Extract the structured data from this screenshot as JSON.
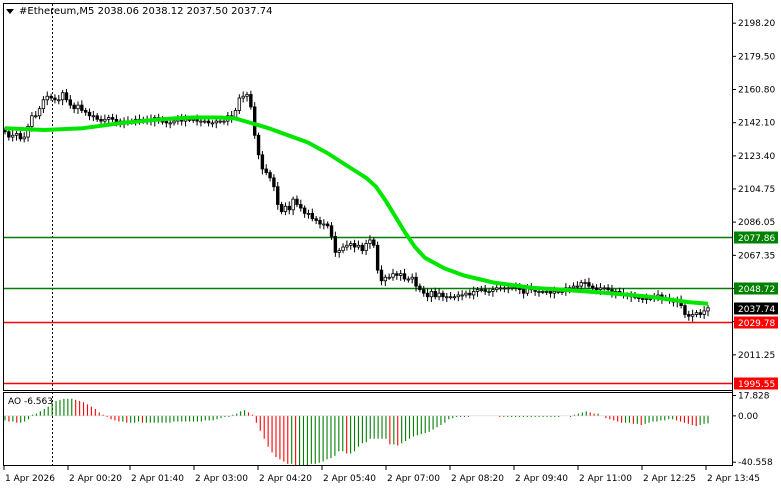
{
  "header": {
    "symbol_line": "#Ethereum,M5  2038.06 2038.12 2037.50 2037.74",
    "dropdown_icon": "triangle-down-icon"
  },
  "indicator": {
    "label": "AO -6.563"
  },
  "chart_data": [
    {
      "type": "candlestick",
      "title": "#Ethereum,M5",
      "ohlc_current": {
        "open": 2038.06,
        "high": 2038.12,
        "low": 2037.5,
        "close": 2037.74
      },
      "y_ticks": [
        "2198.20",
        "2179.50",
        "2160.80",
        "2142.10",
        "2123.40",
        "2104.75",
        "2086.05",
        "2067.35",
        "2048.65",
        "2029.95",
        "2011.25"
      ],
      "ylim": [
        1992,
        2209
      ],
      "x_ticks": [
        "1 Apr 2026",
        "2 Apr 00:20",
        "2 Apr 01:40",
        "2 Apr 03:00",
        "2 Apr 04:20",
        "2 Apr 05:40",
        "2 Apr 07:00",
        "2 Apr 08:20",
        "2 Apr 09:40",
        "2 Apr 11:00",
        "2 Apr 12:25",
        "2 Apr 13:45"
      ],
      "current_price": 2037.74,
      "price_axis_tag_color": "#000000",
      "levels": [
        {
          "value": 2077.86,
          "label": "2077.86",
          "color": "#008000"
        },
        {
          "value": 2048.72,
          "label": "2048.72",
          "color": "#008000"
        },
        {
          "value": 2029.78,
          "label": "2029.78",
          "color": "#ff0000"
        },
        {
          "value": 1995.55,
          "label": "1995.55",
          "color": "#ff0000"
        }
      ],
      "moving_average": {
        "color": "#00e600",
        "points": [
          [
            0,
            2139
          ],
          [
            20,
            2138
          ],
          [
            40,
            2139
          ],
          [
            60,
            2142
          ],
          [
            80,
            2144
          ],
          [
            95,
            2145
          ],
          [
            110,
            2145
          ],
          [
            118,
            2144.5
          ],
          [
            135,
            2139
          ],
          [
            155,
            2131
          ],
          [
            165,
            2125
          ],
          [
            175,
            2118
          ],
          [
            185,
            2111
          ],
          [
            190,
            2106
          ],
          [
            195,
            2098
          ],
          [
            200,
            2089
          ],
          [
            205,
            2080
          ],
          [
            210,
            2072
          ],
          [
            215,
            2066
          ],
          [
            225,
            2060
          ],
          [
            235,
            2056
          ],
          [
            250,
            2052
          ],
          [
            270,
            2049
          ],
          [
            285,
            2048
          ],
          [
            310,
            2046
          ],
          [
            330,
            2044
          ],
          [
            350,
            2041
          ],
          [
            360,
            2040
          ]
        ]
      },
      "closes": [
        2137,
        2134,
        2135,
        2136,
        2133,
        2134,
        2140,
        2146,
        2146,
        2150,
        2155,
        2157,
        2156,
        2155,
        2155,
        2159,
        2155,
        2152,
        2150,
        2152,
        2149,
        2148,
        2146,
        2146,
        2144,
        2143,
        2144,
        2145,
        2144,
        2142,
        2143,
        2142,
        2143,
        2143,
        2144,
        2144,
        2143,
        2144,
        2143,
        2145,
        2143,
        2143,
        2142,
        2142,
        2143,
        2145,
        2143,
        2144,
        2144,
        2144,
        2143,
        2143,
        2143,
        2142,
        2142,
        2143,
        2143,
        2143,
        2146,
        2145,
        2149,
        2156,
        2157,
        2158,
        2151,
        2135,
        2124,
        2116,
        2114,
        2111,
        2106,
        2096,
        2092,
        2095,
        2093,
        2099,
        2096,
        2094,
        2091,
        2091,
        2088,
        2087,
        2085,
        2085,
        2084,
        2078,
        2069,
        2070,
        2072,
        2073,
        2074,
        2072,
        2073,
        2070,
        2074,
        2076,
        2073,
        2059,
        2053,
        2055,
        2055,
        2057,
        2056,
        2057,
        2054,
        2054,
        2055,
        2050,
        2048,
        2046,
        2044,
        2047,
        2044,
        2046,
        2044,
        2044,
        2044,
        2044,
        2045,
        2045,
        2046,
        2045,
        2047,
        2048,
        2048,
        2047,
        2047,
        2048,
        2049,
        2049,
        2049,
        2049,
        2050,
        2049,
        2048,
        2046,
        2049,
        2048,
        2047,
        2047,
        2047,
        2047,
        2046,
        2047,
        2047,
        2047,
        2049,
        2049,
        2050,
        2050,
        2052,
        2052,
        2050,
        2049,
        2048,
        2049,
        2049,
        2048,
        2046,
        2047,
        2046,
        2045,
        2045,
        2044,
        2044,
        2043,
        2043,
        2043,
        2043,
        2044,
        2045,
        2043,
        2043,
        2042,
        2041,
        2042,
        2039,
        2034,
        2033,
        2034,
        2035,
        2034,
        2036,
        2037.74
      ]
    },
    {
      "type": "bar",
      "title": "AO -6.563",
      "y_ticks": [
        "17.828",
        "0.00",
        "-40.558"
      ],
      "ylim": [
        -43,
        20
      ],
      "up_color": "#008000",
      "down_color": "#ff0000",
      "values": [
        -4,
        -5,
        -5,
        -6,
        -6,
        -5,
        -3,
        1,
        2,
        4,
        6,
        8,
        11,
        13,
        14,
        15,
        15,
        15,
        14,
        13,
        12,
        10,
        8,
        6,
        3,
        1,
        -1,
        -3,
        -4,
        -5,
        -5,
        -6,
        -6,
        -6,
        -5,
        -6,
        -6,
        -6,
        -6,
        -6,
        -6,
        -6,
        -6,
        -5,
        -5,
        -5,
        -5,
        -5,
        -5,
        -5,
        -5,
        -4,
        -4,
        -4,
        -3,
        -2,
        -1,
        -1,
        1,
        2,
        4,
        5,
        3,
        1,
        -6,
        -13,
        -20,
        -27,
        -32,
        -36,
        -38,
        -40,
        -42,
        -42,
        -43,
        -43,
        -43,
        -43,
        -42,
        -42,
        -41,
        -40,
        -38,
        -37,
        -35,
        -31,
        -31,
        -33,
        -33,
        -31,
        -27,
        -24,
        -23,
        -20,
        -20,
        -20,
        -20,
        -20,
        -25,
        -25,
        -26,
        -24,
        -22,
        -20,
        -18,
        -17,
        -16,
        -15,
        -14,
        -12,
        -10,
        -8,
        -6,
        -3,
        -2,
        -1,
        -1,
        -1,
        -1,
        0,
        0,
        0,
        0,
        0,
        0,
        0,
        -1,
        -1,
        -1,
        -1,
        -1,
        -1,
        -1,
        -1,
        -1,
        -1,
        -1,
        -1,
        -1,
        -1,
        -1,
        -1,
        0,
        0,
        -1,
        1,
        2,
        3,
        4,
        3,
        2,
        2,
        0,
        -2,
        -3,
        -4,
        -5,
        -6,
        -6,
        -6,
        -7,
        -7,
        -8,
        -7,
        -6,
        -5,
        -5,
        -4,
        -4,
        -3,
        -3,
        -4,
        -5,
        -6,
        -7,
        -8,
        -9,
        -8,
        -7,
        -6.563
      ]
    }
  ]
}
